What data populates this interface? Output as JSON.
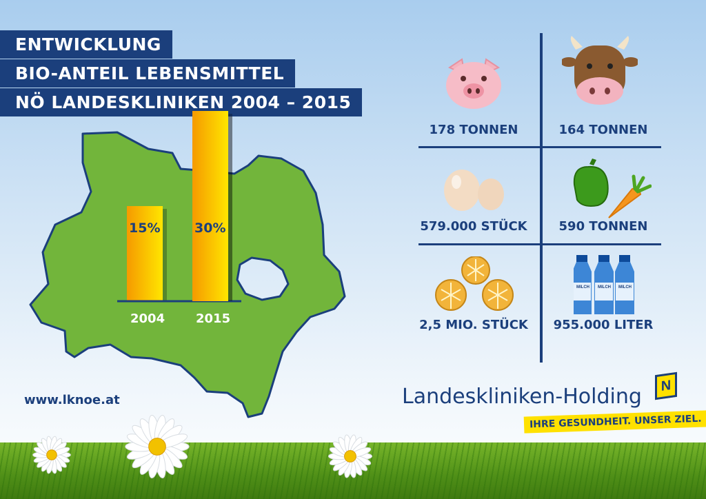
{
  "title_lines": [
    "ENTWICKLUNG",
    "BIO-ANTEIL LEBENSMITTEL",
    "NÖ LANDESKLINIKEN 2004 – 2015"
  ],
  "chart_data": {
    "type": "bar",
    "categories": [
      "2004",
      "2015"
    ],
    "values": [
      15,
      30
    ],
    "value_labels": [
      "15%",
      "30%"
    ],
    "unit": "%",
    "colors": {
      "bar_top": "#ffe600",
      "bar_bottom": "#f59a00",
      "map": "#72b53b",
      "axis": "#1b3f7c"
    }
  },
  "stats": [
    {
      "icon": "pig-icon",
      "label": "178 TONNEN"
    },
    {
      "icon": "cow-icon",
      "label": "164 TONNEN"
    },
    {
      "icon": "eggs-icon",
      "label": "579.000 STÜCK"
    },
    {
      "icon": "vegetables-icon",
      "label": "590 TONNEN"
    },
    {
      "icon": "bread-rolls-icon",
      "label": "2,5 MIO. STÜCK"
    },
    {
      "icon": "milk-bottles-icon",
      "label": "955.000 LITER"
    }
  ],
  "milk_label": "MILCH",
  "url": "www.lknoe.at",
  "brand": {
    "name": "Landeskliniken-Holding",
    "tagline": "IHRE GESUNDHEIT. UNSER ZIEL.",
    "logo_letter": "N"
  },
  "colors": {
    "navy": "#1b3f7c",
    "yellow": "#ffe100"
  }
}
